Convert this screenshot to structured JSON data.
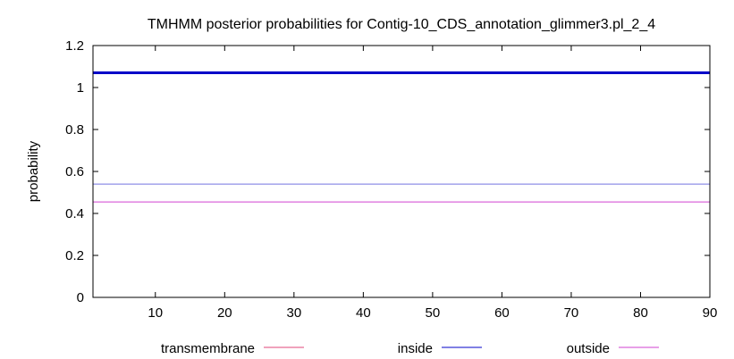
{
  "chart_data": {
    "type": "line",
    "title": "TMHMM posterior probabilities for Contig-10_CDS_annotation_glimmer3.pl_2_4",
    "xlabel": "",
    "ylabel": "probability",
    "xlim": [
      1,
      90
    ],
    "ylim": [
      0,
      1.2
    ],
    "xticks": [
      "10",
      "20",
      "30",
      "40",
      "50",
      "60",
      "70",
      "80",
      "90"
    ],
    "xtick_values": [
      10,
      20,
      30,
      40,
      50,
      60,
      70,
      80,
      90
    ],
    "yticks": [
      "0",
      "0.2",
      "0.4",
      "0.6",
      "0.8",
      "1",
      "1.2"
    ],
    "ytick_values": [
      0,
      0.2,
      0.4,
      0.6,
      0.8,
      1.0,
      1.2
    ],
    "grid": false,
    "legend_position": "bottom",
    "series": [
      {
        "name": "transmembrane",
        "color": "#e0457a",
        "x": [
          1,
          90
        ],
        "y": [
          0,
          0
        ]
      },
      {
        "name": "inside",
        "color": "#0000c8",
        "x": [
          1,
          90
        ],
        "y": [
          0.54,
          0.54
        ]
      },
      {
        "name": "outside",
        "color": "#d040d0",
        "x": [
          1,
          90
        ],
        "y": [
          0.455,
          0.455
        ]
      }
    ],
    "annotations": [
      {
        "y": 1.07,
        "color": "#0000c8",
        "style": "thick"
      }
    ]
  }
}
